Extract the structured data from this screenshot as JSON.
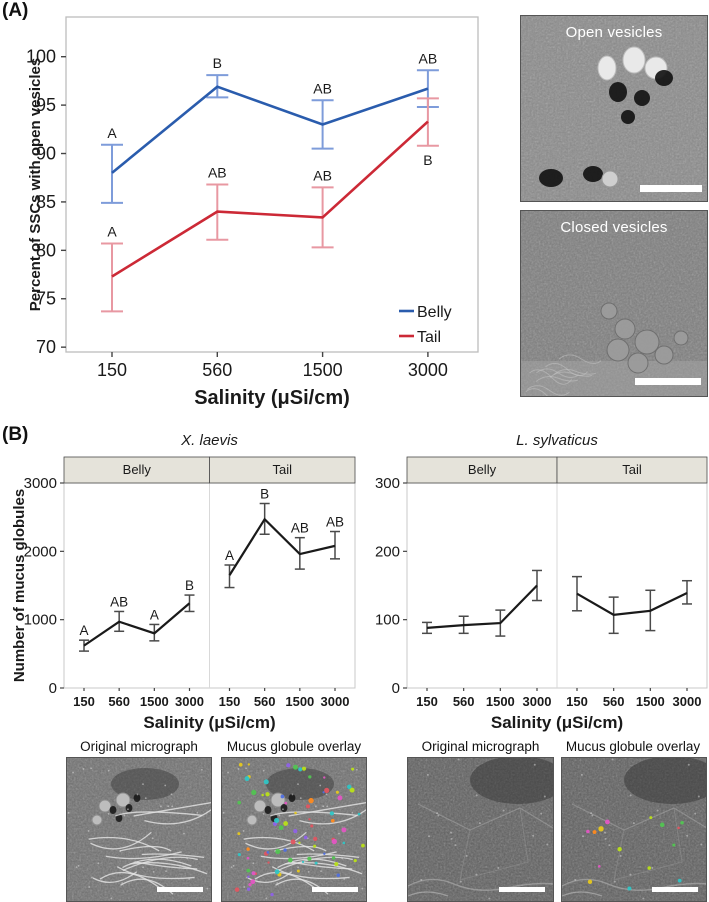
{
  "figure": {
    "panel_a_label": "(A)",
    "panel_b_label": "(B)",
    "background": "#ffffff"
  },
  "panel_a": {
    "micrographs": [
      {
        "label": "Open vesicles"
      },
      {
        "label": "Closed vesicles"
      }
    ]
  },
  "panel_b": {
    "left_micrographs": [
      {
        "label": "Original micrograph"
      },
      {
        "label": "Mucus globule overlay"
      }
    ],
    "right_micrographs": [
      {
        "label": "Original micrograph"
      },
      {
        "label": "Mucus globule overlay"
      }
    ],
    "overlay_palette": [
      "#e6c81e",
      "#52c452",
      "#e356c3",
      "#ff8a1e",
      "#2fc5c5",
      "#8f62e8",
      "#4f6fe0",
      "#e05560",
      "#b9e018"
    ]
  },
  "chart_data": [
    {
      "id": "panel-a",
      "type": "line",
      "title": "",
      "xlabel": "Salinity (μSi/cm)",
      "ylabel": "Percent of SSCs with open vesicles",
      "categories": [
        150,
        560,
        1500,
        3000
      ],
      "ylim": [
        69.5,
        104.1
      ],
      "yticks": [
        70,
        75,
        80,
        85,
        90,
        95,
        100
      ],
      "grid": false,
      "legend_position": "bottom-right",
      "series": [
        {
          "name": "Belly",
          "color": "#2A5CAD",
          "errorbar_color": "#7E9CDA",
          "letter_color": "#6E93D8",
          "values": [
            88.0,
            96.9,
            93.0,
            96.7
          ],
          "err_lo": [
            84.9,
            95.8,
            90.5,
            94.8
          ],
          "err_hi": [
            90.9,
            98.1,
            95.5,
            98.6
          ],
          "letters": [
            "A",
            "B",
            "AB",
            "AB"
          ],
          "letter_pos": [
            "above",
            "above",
            "above",
            "above"
          ]
        },
        {
          "name": "Tail",
          "color": "#CC2936",
          "errorbar_color": "#E898A2",
          "letter_color": "#E4505E",
          "values": [
            77.3,
            84.0,
            83.4,
            93.3
          ],
          "err_lo": [
            73.7,
            81.1,
            80.3,
            90.8
          ],
          "err_hi": [
            80.7,
            86.8,
            86.5,
            95.7
          ],
          "letters": [
            "A",
            "AB",
            "AB",
            "B"
          ],
          "letter_pos": [
            "above",
            "above",
            "above",
            "below"
          ]
        }
      ]
    },
    {
      "id": "panel-b-left",
      "type": "line-faceted",
      "title": "X. laevis",
      "xlabel": "Salinity (μSi/cm)",
      "ylabel": "Number of mucus globules",
      "categories": [
        150,
        560,
        1500,
        3000
      ],
      "ylim": [
        0,
        3000
      ],
      "yticks": [
        0,
        1000,
        2000,
        3000
      ],
      "strip_fill": "#E5E3DA",
      "line_color": "#1a1a1a",
      "errorbar_color": "#4a4a4a",
      "facets": [
        {
          "label": "Belly",
          "values": [
            620,
            970,
            800,
            1240
          ],
          "err_lo": [
            540,
            830,
            690,
            1120
          ],
          "err_hi": [
            700,
            1120,
            930,
            1360
          ],
          "letters": [
            "A",
            "AB",
            "A",
            "B"
          ]
        },
        {
          "label": "Tail",
          "values": [
            1650,
            2470,
            1960,
            2080
          ],
          "err_lo": [
            1470,
            2250,
            1740,
            1890
          ],
          "err_hi": [
            1800,
            2700,
            2200,
            2290
          ],
          "letters": [
            "A",
            "B",
            "AB",
            "AB"
          ]
        }
      ]
    },
    {
      "id": "panel-b-right",
      "type": "line-faceted",
      "title": "L. sylvaticus",
      "xlabel": "Salinity (μSi/cm)",
      "ylabel": "",
      "categories": [
        150,
        560,
        1500,
        3000
      ],
      "ylim": [
        0,
        300
      ],
      "yticks": [
        0,
        100,
        200,
        300
      ],
      "strip_fill": "#E5E3DA",
      "line_color": "#1a1a1a",
      "errorbar_color": "#4a4a4a",
      "facets": [
        {
          "label": "Belly",
          "values": [
            88,
            92,
            95,
            150
          ],
          "err_lo": [
            80,
            80,
            76,
            128
          ],
          "err_hi": [
            96,
            105,
            114,
            172
          ],
          "letters": [
            "",
            "",
            "",
            ""
          ]
        },
        {
          "label": "Tail",
          "values": [
            138,
            107,
            113,
            139
          ],
          "err_lo": [
            113,
            80,
            84,
            123
          ],
          "err_hi": [
            163,
            133,
            143,
            157
          ],
          "letters": [
            "",
            "",
            "",
            ""
          ]
        }
      ]
    }
  ]
}
